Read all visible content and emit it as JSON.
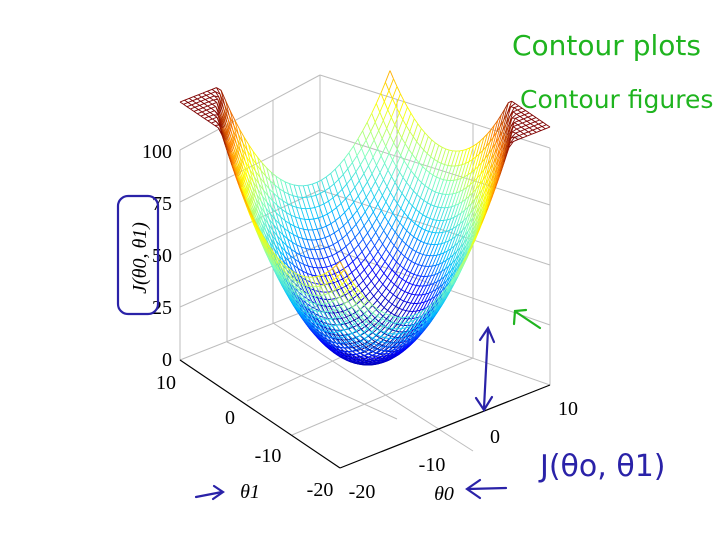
{
  "chart_data": {
    "type": "surface",
    "function": "J(θ0, θ1)",
    "xlabel": "θ0",
    "ylabel": "θ1",
    "zlabel": "J(θ0, θ1)",
    "x_ticks": [
      "-20",
      "-10",
      "0",
      "10"
    ],
    "y_ticks": [
      "-20",
      "-10",
      "0",
      "10"
    ],
    "z_ticks": [
      "0",
      "25",
      "50",
      "75",
      "100"
    ],
    "xlim": [
      -20,
      10
    ],
    "ylim": [
      -20,
      10
    ],
    "zlim": [
      0,
      100
    ],
    "grid": true,
    "colormap": [
      "#00007f",
      "#0000ff",
      "#00bfff",
      "#7fffbf",
      "#ffff00",
      "#ff7f00",
      "#7f0000"
    ]
  },
  "annotations": {
    "title_note": "Contour plots",
    "subtitle_note": "Contour figures -",
    "function_note": "J(θo, θ1)",
    "colors": {
      "green_ink": "#1fb41f",
      "blue_ink": "#2a22a8"
    }
  }
}
